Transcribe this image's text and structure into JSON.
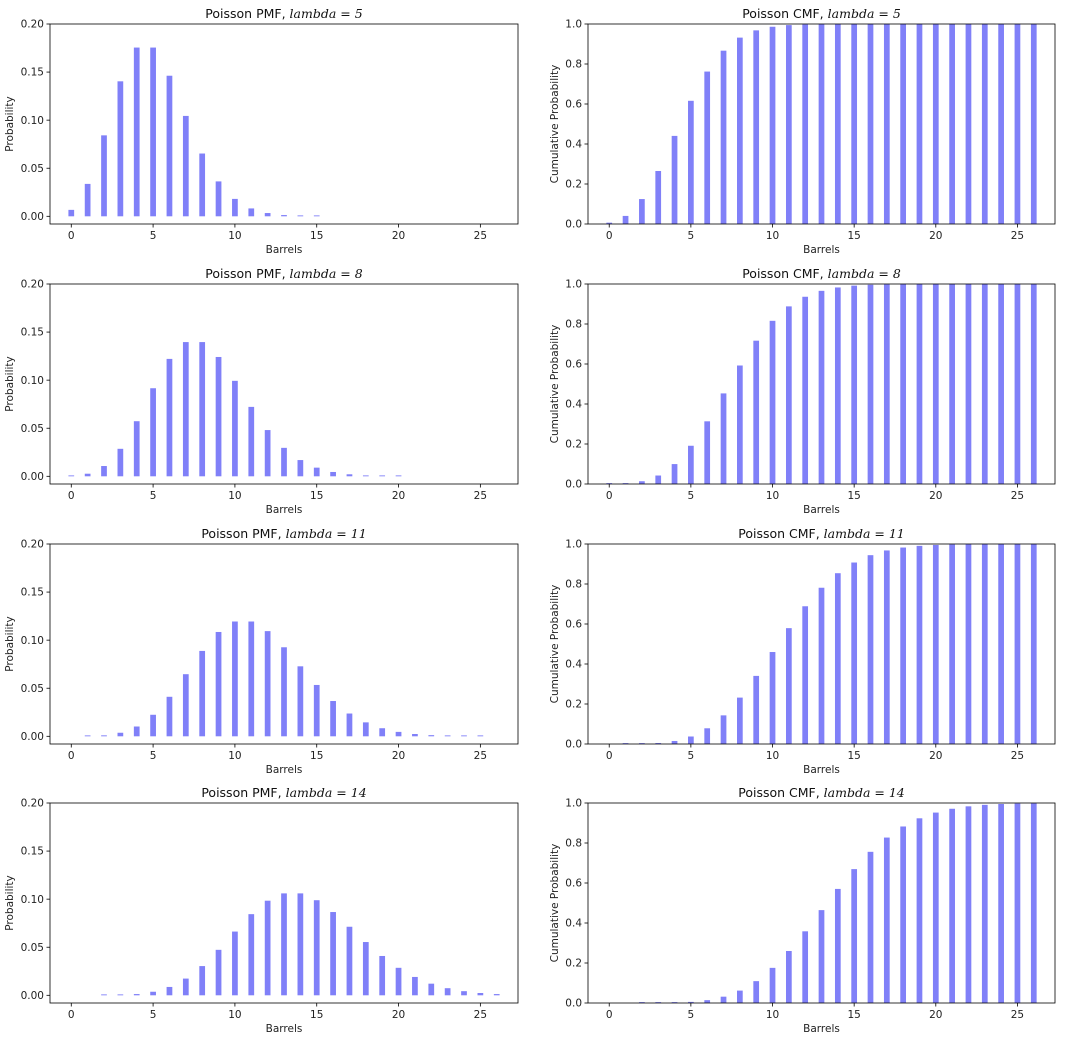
{
  "figure": {
    "bar_color": "#8080f8",
    "background": "#ffffff"
  },
  "chart_data": [
    {
      "type": "bar",
      "title_prefix": "Poisson PMF, ",
      "title_math": "lambda = 5",
      "xlabel": "Barrels",
      "ylabel": "Probability",
      "xlim": [
        -1.3,
        27.3
      ],
      "ylim": [
        -0.008,
        0.2
      ],
      "xticks": [
        0,
        5,
        10,
        15,
        20,
        25
      ],
      "yticks": [
        0.0,
        0.05,
        0.1,
        0.15,
        0.2
      ],
      "ytick_labels": [
        "0.00",
        "0.05",
        "0.10",
        "0.15",
        "0.20"
      ],
      "x": [
        0,
        1,
        2,
        3,
        4,
        5,
        6,
        7,
        8,
        9,
        10,
        11,
        12,
        13,
        14,
        15,
        16,
        17,
        18,
        19,
        20,
        21,
        22,
        23,
        24,
        25,
        26
      ],
      "values": [
        0.0067,
        0.0337,
        0.0842,
        0.1404,
        0.1755,
        0.1755,
        0.1462,
        0.1044,
        0.0653,
        0.0363,
        0.0181,
        0.0082,
        0.0034,
        0.0013,
        0.0005,
        0.0002,
        0,
        0,
        0,
        0,
        0,
        0,
        0,
        0,
        0,
        0,
        0
      ]
    },
    {
      "type": "bar",
      "title_prefix": "Poisson CMF, ",
      "title_math": "lambda = 5",
      "xlabel": "Barrels",
      "ylabel": "Cumulative Probability",
      "xlim": [
        -1.3,
        27.3
      ],
      "ylim": [
        0,
        1.0
      ],
      "xticks": [
        0,
        5,
        10,
        15,
        20,
        25
      ],
      "yticks": [
        0.0,
        0.2,
        0.4,
        0.6,
        0.8,
        1.0
      ],
      "ytick_labels": [
        "0.0",
        "0.2",
        "0.4",
        "0.6",
        "0.8",
        "1.0"
      ],
      "x": [
        0,
        1,
        2,
        3,
        4,
        5,
        6,
        7,
        8,
        9,
        10,
        11,
        12,
        13,
        14,
        15,
        16,
        17,
        18,
        19,
        20,
        21,
        22,
        23,
        24,
        25,
        26
      ],
      "values": [
        0.0067,
        0.0404,
        0.1247,
        0.265,
        0.4405,
        0.616,
        0.7622,
        0.8666,
        0.9319,
        0.9682,
        0.9863,
        0.9945,
        0.998,
        0.9993,
        0.9998,
        0.9999,
        1,
        1,
        1,
        1,
        1,
        1,
        1,
        1,
        1,
        1,
        1
      ]
    },
    {
      "type": "bar",
      "title_prefix": "Poisson PMF, ",
      "title_math": "lambda = 8",
      "xlabel": "Barrels",
      "ylabel": "Probability",
      "xlim": [
        -1.3,
        27.3
      ],
      "ylim": [
        -0.008,
        0.2
      ],
      "xticks": [
        0,
        5,
        10,
        15,
        20,
        25
      ],
      "yticks": [
        0.0,
        0.05,
        0.1,
        0.15,
        0.2
      ],
      "ytick_labels": [
        "0.00",
        "0.05",
        "0.10",
        "0.15",
        "0.20"
      ],
      "x": [
        0,
        1,
        2,
        3,
        4,
        5,
        6,
        7,
        8,
        9,
        10,
        11,
        12,
        13,
        14,
        15,
        16,
        17,
        18,
        19,
        20,
        21,
        22,
        23,
        24,
        25,
        26
      ],
      "values": [
        0.0003,
        0.0027,
        0.0107,
        0.0286,
        0.0573,
        0.0916,
        0.1221,
        0.1396,
        0.1396,
        0.1241,
        0.0993,
        0.0722,
        0.0481,
        0.0296,
        0.0169,
        0.009,
        0.0045,
        0.0021,
        0.0009,
        0.0004,
        0.0002,
        0,
        0,
        0,
        0,
        0,
        0
      ]
    },
    {
      "type": "bar",
      "title_prefix": "Poisson CMF, ",
      "title_math": "lambda = 8",
      "xlabel": "Barrels",
      "ylabel": "Cumulative Probability",
      "xlim": [
        -1.3,
        27.3
      ],
      "ylim": [
        0,
        1.0
      ],
      "xticks": [
        0,
        5,
        10,
        15,
        20,
        25
      ],
      "yticks": [
        0.0,
        0.2,
        0.4,
        0.6,
        0.8,
        1.0
      ],
      "ytick_labels": [
        "0.0",
        "0.2",
        "0.4",
        "0.6",
        "0.8",
        "1.0"
      ],
      "x": [
        0,
        1,
        2,
        3,
        4,
        5,
        6,
        7,
        8,
        9,
        10,
        11,
        12,
        13,
        14,
        15,
        16,
        17,
        18,
        19,
        20,
        21,
        22,
        23,
        24,
        25,
        26
      ],
      "values": [
        0.0003,
        0.003,
        0.0138,
        0.0424,
        0.0996,
        0.1912,
        0.3134,
        0.453,
        0.5925,
        0.7166,
        0.8159,
        0.8881,
        0.9362,
        0.9658,
        0.9827,
        0.9918,
        0.9963,
        0.9984,
        0.9993,
        0.9997,
        0.9999,
        1,
        1,
        1,
        1,
        1,
        1
      ]
    },
    {
      "type": "bar",
      "title_prefix": "Poisson PMF, ",
      "title_math": "lambda = 11",
      "xlabel": "Barrels",
      "ylabel": "Probability",
      "xlim": [
        -1.3,
        27.3
      ],
      "ylim": [
        -0.008,
        0.2
      ],
      "xticks": [
        0,
        5,
        10,
        15,
        20,
        25
      ],
      "yticks": [
        0.0,
        0.05,
        0.1,
        0.15,
        0.2
      ],
      "ytick_labels": [
        "0.00",
        "0.05",
        "0.10",
        "0.15",
        "0.20"
      ],
      "x": [
        0,
        1,
        2,
        3,
        4,
        5,
        6,
        7,
        8,
        9,
        10,
        11,
        12,
        13,
        14,
        15,
        16,
        17,
        18,
        19,
        20,
        21,
        22,
        23,
        24,
        25,
        26
      ],
      "values": [
        0,
        0.0002,
        0.001,
        0.0037,
        0.0102,
        0.0224,
        0.0411,
        0.0646,
        0.0888,
        0.1085,
        0.1194,
        0.1194,
        0.1094,
        0.0926,
        0.0728,
        0.0534,
        0.0367,
        0.0237,
        0.0145,
        0.0084,
        0.0046,
        0.0024,
        0.0012,
        0.0006,
        0.0003,
        0.0001,
        0
      ]
    },
    {
      "type": "bar",
      "title_prefix": "Poisson CMF, ",
      "title_math": "lambda = 11",
      "xlabel": "Barrels",
      "ylabel": "Cumulative Probability",
      "xlim": [
        -1.3,
        27.3
      ],
      "ylim": [
        0,
        1.0
      ],
      "xticks": [
        0,
        5,
        10,
        15,
        20,
        25
      ],
      "yticks": [
        0.0,
        0.2,
        0.4,
        0.6,
        0.8,
        1.0
      ],
      "ytick_labels": [
        "0.0",
        "0.2",
        "0.4",
        "0.6",
        "0.8",
        "1.0"
      ],
      "x": [
        0,
        1,
        2,
        3,
        4,
        5,
        6,
        7,
        8,
        9,
        10,
        11,
        12,
        13,
        14,
        15,
        16,
        17,
        18,
        19,
        20,
        21,
        22,
        23,
        24,
        25,
        26
      ],
      "values": [
        0,
        0.0002,
        0.0012,
        0.0049,
        0.0151,
        0.0375,
        0.0786,
        0.1432,
        0.232,
        0.3405,
        0.4599,
        0.5793,
        0.6887,
        0.7813,
        0.854,
        0.9074,
        0.9441,
        0.9678,
        0.9823,
        0.9907,
        0.9953,
        0.9977,
        0.999,
        0.9995,
        0.9998,
        0.9999,
        1
      ]
    },
    {
      "type": "bar",
      "title_prefix": "Poisson PMF, ",
      "title_math": "lambda = 14",
      "xlabel": "Barrels",
      "ylabel": "Probability",
      "xlim": [
        -1.3,
        27.3
      ],
      "ylim": [
        -0.008,
        0.2
      ],
      "xticks": [
        0,
        5,
        10,
        15,
        20,
        25
      ],
      "yticks": [
        0.0,
        0.05,
        0.1,
        0.15,
        0.2
      ],
      "ytick_labels": [
        "0.00",
        "0.05",
        "0.10",
        "0.15",
        "0.20"
      ],
      "x": [
        0,
        1,
        2,
        3,
        4,
        5,
        6,
        7,
        8,
        9,
        10,
        11,
        12,
        13,
        14,
        15,
        16,
        17,
        18,
        19,
        20,
        21,
        22,
        23,
        24,
        25,
        26
      ],
      "values": [
        0,
        0,
        0.0001,
        0.0004,
        0.0013,
        0.0037,
        0.0087,
        0.0174,
        0.0304,
        0.0473,
        0.0663,
        0.0844,
        0.0984,
        0.106,
        0.106,
        0.0989,
        0.0866,
        0.0713,
        0.0554,
        0.0409,
        0.0286,
        0.0191,
        0.0121,
        0.0074,
        0.0043,
        0.0024,
        0.0013
      ]
    },
    {
      "type": "bar",
      "title_prefix": "Poisson CMF, ",
      "title_math": "lambda = 14",
      "xlabel": "Barrels",
      "ylabel": "Cumulative Probability",
      "xlim": [
        -1.3,
        27.3
      ],
      "ylim": [
        0,
        1.0
      ],
      "xticks": [
        0,
        5,
        10,
        15,
        20,
        25
      ],
      "yticks": [
        0.0,
        0.2,
        0.4,
        0.6,
        0.8,
        1.0
      ],
      "ytick_labels": [
        "0.0",
        "0.2",
        "0.4",
        "0.6",
        "0.8",
        "1.0"
      ],
      "x": [
        0,
        1,
        2,
        3,
        4,
        5,
        6,
        7,
        8,
        9,
        10,
        11,
        12,
        13,
        14,
        15,
        16,
        17,
        18,
        19,
        20,
        21,
        22,
        23,
        24,
        25,
        26
      ],
      "values": [
        0,
        0,
        0.0001,
        0.0005,
        0.0018,
        0.0055,
        0.0142,
        0.0316,
        0.062,
        0.1093,
        0.1757,
        0.26,
        0.3584,
        0.4644,
        0.5704,
        0.6694,
        0.7559,
        0.8272,
        0.8826,
        0.9235,
        0.9521,
        0.9712,
        0.9833,
        0.9907,
        0.995,
        0.9974,
        0.9987
      ]
    }
  ]
}
